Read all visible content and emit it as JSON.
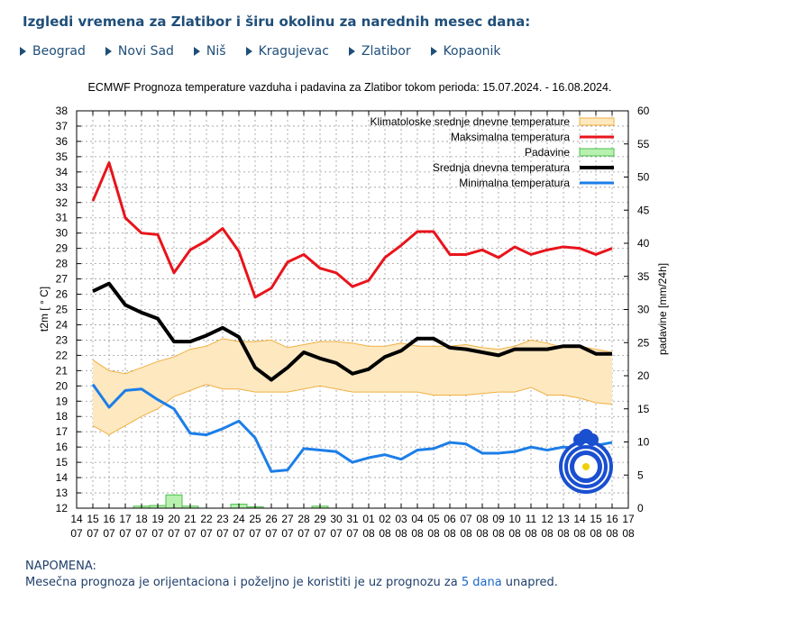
{
  "page": {
    "title": "Izgledi vremena za Zlatibor i širu okolinu za narednih mesec dana:",
    "cities": [
      "Beograd",
      "Novi Sad",
      "Niš",
      "Kragujevac",
      "Zlatibor",
      "Kopaonik"
    ]
  },
  "chart_data": {
    "type": "line",
    "title": "ECMWF Prognoza temperature  vazduha i padavina za Zlatibor tokom perioda: 15.07.2024. - 16.08.2024.",
    "ylabel": "t2m [ ° C]",
    "y2label": "padavine [mm/24h]",
    "ylim": [
      12,
      38
    ],
    "y2lim": [
      0,
      60
    ],
    "y_ticks": [
      "12",
      "13",
      "14",
      "15",
      "16",
      "17",
      "18",
      "19",
      "20",
      "21",
      "22",
      "23",
      "24",
      "25",
      "26",
      "27",
      "28",
      "29",
      "30",
      "31",
      "32",
      "33",
      "34",
      "35",
      "36",
      "37",
      "38"
    ],
    "y2_ticks": [
      "0",
      "5",
      "10",
      "15",
      "20",
      "25",
      "30",
      "35",
      "40",
      "45",
      "50",
      "55",
      "60"
    ],
    "x_ticks": [
      [
        "14",
        "07"
      ],
      [
        "15",
        "07"
      ],
      [
        "16",
        "07"
      ],
      [
        "17",
        "07"
      ],
      [
        "18",
        "07"
      ],
      [
        "19",
        "07"
      ],
      [
        "20",
        "07"
      ],
      [
        "21",
        "07"
      ],
      [
        "22",
        "07"
      ],
      [
        "23",
        "07"
      ],
      [
        "24",
        "07"
      ],
      [
        "25",
        "07"
      ],
      [
        "26",
        "07"
      ],
      [
        "27",
        "07"
      ],
      [
        "28",
        "07"
      ],
      [
        "29",
        "07"
      ],
      [
        "30",
        "07"
      ],
      [
        "31",
        "07"
      ],
      [
        "01",
        "08"
      ],
      [
        "02",
        "08"
      ],
      [
        "03",
        "08"
      ],
      [
        "04",
        "08"
      ],
      [
        "05",
        "08"
      ],
      [
        "06",
        "08"
      ],
      [
        "07",
        "08"
      ],
      [
        "08",
        "08"
      ],
      [
        "09",
        "08"
      ],
      [
        "10",
        "08"
      ],
      [
        "11",
        "08"
      ],
      [
        "12",
        "08"
      ],
      [
        "13",
        "08"
      ],
      [
        "14",
        "08"
      ],
      [
        "15",
        "08"
      ],
      [
        "16",
        "08"
      ],
      [
        "17",
        "08"
      ]
    ],
    "x_start_day": 14,
    "x_end_day": 48,
    "legend_position": "top-right",
    "grid": true,
    "days": [
      15,
      16,
      17,
      18,
      19,
      20,
      21,
      22,
      23,
      24,
      25,
      26,
      27,
      28,
      29,
      30,
      31,
      32,
      33,
      34,
      35,
      36,
      37,
      38,
      39,
      40,
      41,
      42,
      43,
      44,
      45,
      46,
      47
    ],
    "series": [
      {
        "name": "Klimatoloske srednje dnevne temperature",
        "kind": "band",
        "color": "#f0b040",
        "fill": "#fde8c0",
        "low": [
          17.4,
          16.8,
          17.4,
          18.0,
          18.5,
          19.3,
          19.7,
          20.1,
          19.8,
          19.8,
          19.6,
          19.6,
          19.6,
          19.8,
          20.0,
          19.8,
          19.6,
          19.6,
          19.6,
          19.6,
          19.6,
          19.4,
          19.4,
          19.4,
          19.5,
          19.6,
          19.6,
          19.9,
          19.4,
          19.4,
          19.2,
          18.9,
          18.8
        ],
        "high": [
          21.7,
          21.0,
          20.8,
          21.2,
          21.6,
          21.9,
          22.4,
          22.6,
          23.1,
          22.9,
          22.9,
          23.0,
          22.5,
          22.7,
          22.9,
          22.9,
          22.8,
          22.6,
          22.6,
          22.8,
          22.6,
          22.6,
          22.6,
          22.7,
          22.5,
          22.4,
          22.6,
          23.0,
          22.8,
          22.5,
          22.6,
          22.4,
          22.2
        ]
      },
      {
        "name": "Maksimalna temperatura",
        "kind": "line",
        "color": "#e8141c",
        "values": [
          32.1,
          34.6,
          31.0,
          30.0,
          29.9,
          27.4,
          28.9,
          29.5,
          30.3,
          28.8,
          25.8,
          26.4,
          28.1,
          28.6,
          27.7,
          27.4,
          26.5,
          26.9,
          28.4,
          29.2,
          30.1,
          30.1,
          28.6,
          28.6,
          28.9,
          28.4,
          29.1,
          28.6,
          28.9,
          29.1,
          29.0,
          28.6,
          29.0
        ]
      },
      {
        "name": "Padavine",
        "kind": "bar",
        "color": "#4cc04c",
        "fill": "#b8f0b0",
        "values": [
          0,
          0,
          0,
          0.3,
          0.4,
          2.0,
          0.3,
          0,
          0,
          0.6,
          0.2,
          0,
          0,
          0,
          0.3,
          0,
          0,
          0,
          0,
          0,
          0,
          0,
          0,
          0,
          0,
          0,
          0,
          0,
          0,
          0,
          0,
          0,
          0
        ]
      },
      {
        "name": "Srednja dnevna temperatura",
        "kind": "line",
        "color": "#000000",
        "values": [
          26.2,
          26.7,
          25.3,
          24.8,
          24.4,
          22.9,
          22.9,
          23.3,
          23.8,
          23.2,
          21.2,
          20.4,
          21.2,
          22.2,
          21.8,
          21.5,
          20.8,
          21.1,
          21.9,
          22.3,
          23.1,
          23.1,
          22.5,
          22.4,
          22.2,
          22.0,
          22.4,
          22.4,
          22.4,
          22.6,
          22.6,
          22.1,
          22.1
        ]
      },
      {
        "name": "Minimalna temperatura",
        "kind": "line",
        "color": "#1c7ee8",
        "values": [
          20.1,
          18.6,
          19.7,
          19.8,
          19.1,
          18.5,
          16.9,
          16.8,
          17.2,
          17.7,
          16.6,
          14.4,
          14.5,
          15.9,
          15.8,
          15.7,
          15.0,
          15.3,
          15.5,
          15.2,
          15.8,
          15.9,
          16.3,
          16.2,
          15.6,
          15.6,
          15.7,
          16.0,
          15.8,
          16.0,
          15.9,
          16.1,
          16.3
        ]
      }
    ]
  },
  "note": {
    "heading": "NAPOMENA:",
    "text_before": "Mesečna prognoza je orijentaciona i poželjno je koristiti je uz prognozu za ",
    "link": "5 dana",
    "text_after": " unapred."
  }
}
